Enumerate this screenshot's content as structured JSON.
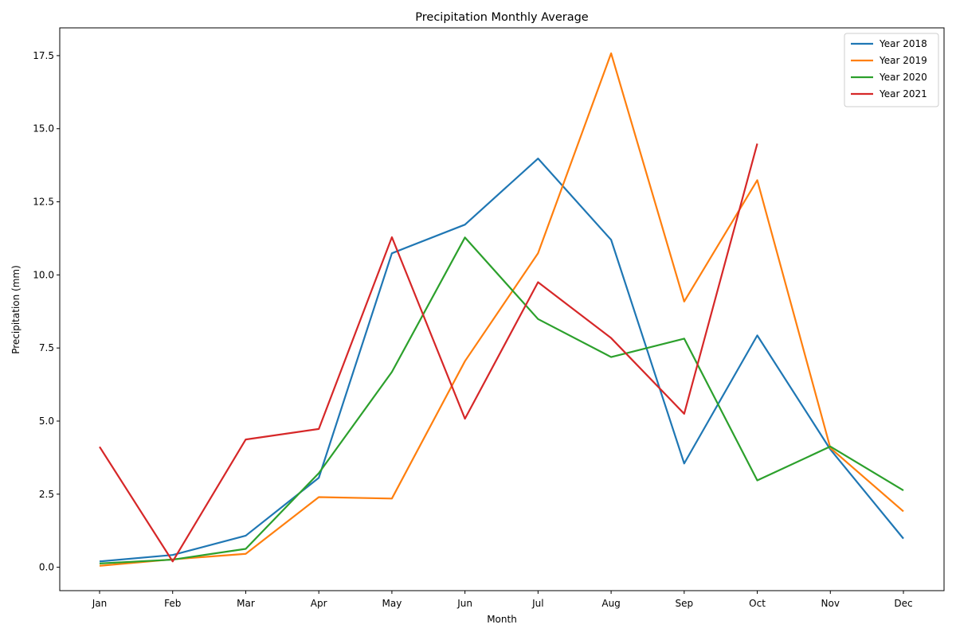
{
  "chart_data": {
    "type": "line",
    "title": "Precipitation Monthly Average",
    "xlabel": "Month",
    "ylabel": "Precipitation (mm)",
    "categories": [
      "Jan",
      "Feb",
      "Mar",
      "Apr",
      "May",
      "Jun",
      "Jul",
      "Aug",
      "Sep",
      "Oct",
      "Nov",
      "Dec"
    ],
    "ylim": [
      -0.8,
      18.45
    ],
    "yticks": [
      0.0,
      2.5,
      5.0,
      7.5,
      10.0,
      12.5,
      15.0,
      17.5
    ],
    "ytick_labels": [
      "0.0",
      "2.5",
      "5.0",
      "7.5",
      "10.0",
      "12.5",
      "15.0",
      "17.5"
    ],
    "grid": false,
    "legend_position": "top-right",
    "series": [
      {
        "name": "Year 2018",
        "color": "#1f77b4",
        "values": [
          0.2,
          0.42,
          1.08,
          3.06,
          10.74,
          11.72,
          13.98,
          11.2,
          3.55,
          7.93,
          4.03,
          0.98
        ]
      },
      {
        "name": "Year 2019",
        "color": "#ff7f0e",
        "values": [
          0.05,
          0.27,
          0.46,
          2.4,
          2.35,
          7.05,
          10.74,
          17.58,
          9.09,
          13.24,
          4.08,
          1.91
        ]
      },
      {
        "name": "Year 2020",
        "color": "#2ca02c",
        "values": [
          0.13,
          0.26,
          0.63,
          3.22,
          6.68,
          11.28,
          8.49,
          7.19,
          7.82,
          2.97,
          4.13,
          2.63
        ]
      },
      {
        "name": "Year 2021",
        "color": "#d62728",
        "values": [
          4.12,
          0.2,
          4.37,
          4.73,
          11.29,
          5.08,
          9.75,
          7.84,
          5.25,
          14.49,
          null,
          null
        ]
      }
    ]
  }
}
